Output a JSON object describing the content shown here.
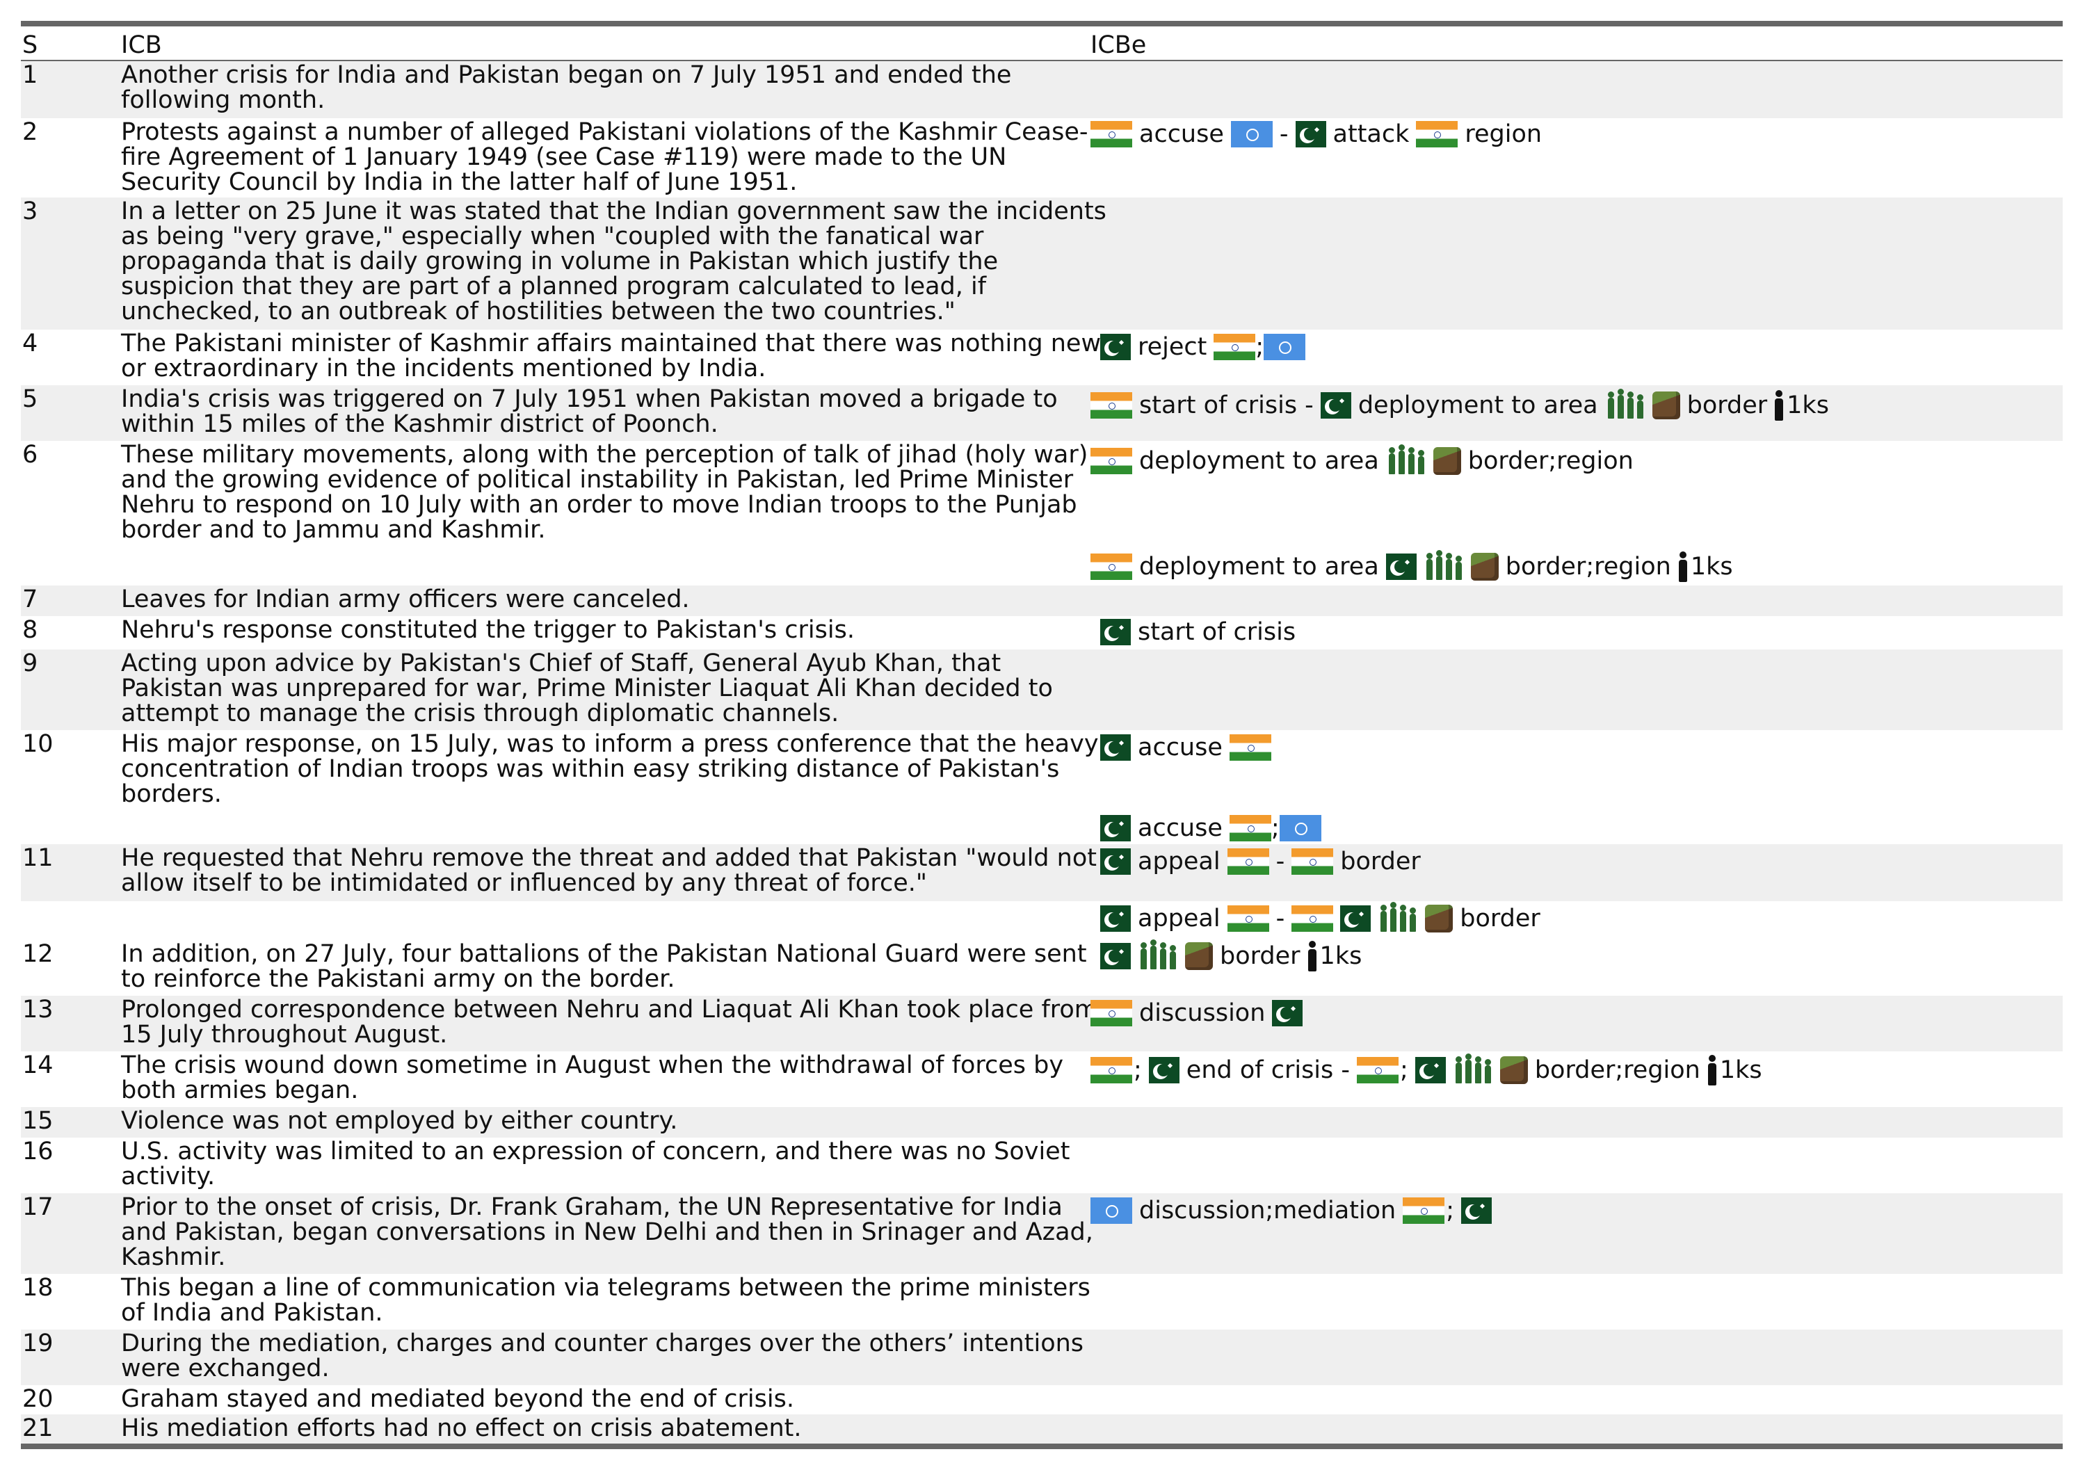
{
  "table": {
    "headers": {
      "s": "S",
      "icb": "ICB",
      "icbe": "ICBe"
    },
    "rows": [
      {
        "s": "1",
        "text": "Another crisis for India and Pakistan began on 7 July 1951 and ended the following month."
      },
      {
        "s": "2",
        "text": "Protests against a number of alleged Pakistani violations of the Kashmir Cease-fire Agreement of 1 January 1949 (see Case #119) were made to the UN Security Council by India in the latter half of June 1951."
      },
      {
        "s": "3",
        "text": "In a letter on 25 June it was stated that the Indian government saw the incidents as being \"very grave,\" especially when \"coupled with the fanatical war propaganda that is daily growing in volume in Pakistan which justify the suspicion that they are part of a planned program calculated to lead, if unchecked, to an outbreak of hostilities between the two countries.\""
      },
      {
        "s": "4",
        "text": "The Pakistani minister of Kashmir affairs maintained that there was nothing new or extraordinary in the incidents mentioned by India."
      },
      {
        "s": "5",
        "text": "India's crisis was triggered on 7 July 1951 when Pakistan moved a brigade to within 15 miles of the Kashmir district of Poonch."
      },
      {
        "s": "6",
        "text": "These military movements, along with the perception of talk of jihad (holy war) and the growing evidence of political instability in Pakistan, led Prime Minister Nehru to respond on 10 July with an order to move Indian troops to the Punjab border and to Jammu and Kashmir."
      },
      {
        "s": "7",
        "text": "Leaves for Indian army officers were canceled."
      },
      {
        "s": "8",
        "text": "Nehru's response constituted the trigger to Pakistan's crisis."
      },
      {
        "s": "9",
        "text": "Acting upon advice by Pakistan's Chief of Staff, General Ayub Khan, that Pakistan was unprepared for war, Prime Minister Liaquat Ali Khan decided to attempt to manage the crisis through diplomatic channels."
      },
      {
        "s": "10",
        "text": "His major response, on 15 July, was to inform a press conference that the heavy concentration of Indian troops was within easy striking distance of Pakistan's borders."
      },
      {
        "s": "11",
        "text": "He requested that Nehru remove the threat and added that Pakistan \"would not allow itself to be intimidated or influenced by any threat of force.\""
      },
      {
        "s": "12",
        "text": "In addition, on 27 July, four battalions of the Pakistan National Guard were sent to reinforce the Pakistani army on the border."
      },
      {
        "s": "13",
        "text": "Prolonged correspondence between Nehru and Liaquat Ali Khan took place from 15 July throughout August."
      },
      {
        "s": "14",
        "text": "The crisis wound down sometime in August when the withdrawal of forces by both armies began."
      },
      {
        "s": "15",
        "text": "Violence was not employed by either country."
      },
      {
        "s": "16",
        "text": "U.S. activity was limited to an expression of concern, and there was no Soviet activity."
      },
      {
        "s": "17",
        "text": "Prior to the onset of crisis, Dr. Frank Graham, the UN Representative for India and Pakistan, began conversations in New Delhi and then in Srinager and Azad, Kashmir."
      },
      {
        "s": "18",
        "text": "This began a line of communication via telegrams between the prime ministers of India and Pakistan."
      },
      {
        "s": "19",
        "text": "During the mediation, charges and counter charges over the others’ intentions were exchanged."
      },
      {
        "s": "20",
        "text": "Graham stayed and mediated beyond the end of crisis."
      },
      {
        "s": "21",
        "text": "His mediation efforts had no effect on crisis abatement."
      }
    ]
  },
  "events": {
    "e2": {
      "w1": "accuse",
      "w2": "-",
      "w3": "attack",
      "w4": "region"
    },
    "e4": {
      "w1": "reject",
      "w2": ";"
    },
    "e5": {
      "w1": "start of crisis -",
      "w2": "deployment to area",
      "w3": "border",
      "w4": "1ks"
    },
    "e6a": {
      "w1": "deployment to area",
      "w2": "border;region"
    },
    "e6b": {
      "w1": "deployment to area",
      "w2": "border;region",
      "w3": "1ks"
    },
    "e8": {
      "w1": "start of crisis"
    },
    "e10a": {
      "w1": "accuse"
    },
    "e10b": {
      "w1": "accuse",
      "w2": ";"
    },
    "e11a": {
      "w1": "appeal",
      "w2": "-",
      "w3": "border"
    },
    "e11b": {
      "w1": "appeal",
      "w2": "-",
      "w3": "border"
    },
    "e12": {
      "w1": "border",
      "w2": "1ks"
    },
    "e13": {
      "w1": "discussion"
    },
    "e14": {
      "w1": ";",
      "w2": "end of crisis -",
      "w3": ";",
      "w4": "border;region",
      "w5": "1ks"
    },
    "e17": {
      "w1": "discussion;mediation",
      "w2": ";"
    }
  },
  "icons": {
    "india": "india-flag-icon",
    "pakistan": "pakistan-flag-icon",
    "un": "un-flag-icon",
    "troops": "troops-icon",
    "terrain": "terrain-block-icon",
    "person": "person-icon"
  },
  "colors": {
    "alt_row": "#efefef",
    "rule": "#666666",
    "india_saffron": "#f39b2d",
    "india_green": "#2f8f30",
    "pakistan_green": "#0d4a24",
    "un_blue": "#4a90e2",
    "troops_green": "#2c6b2f"
  }
}
